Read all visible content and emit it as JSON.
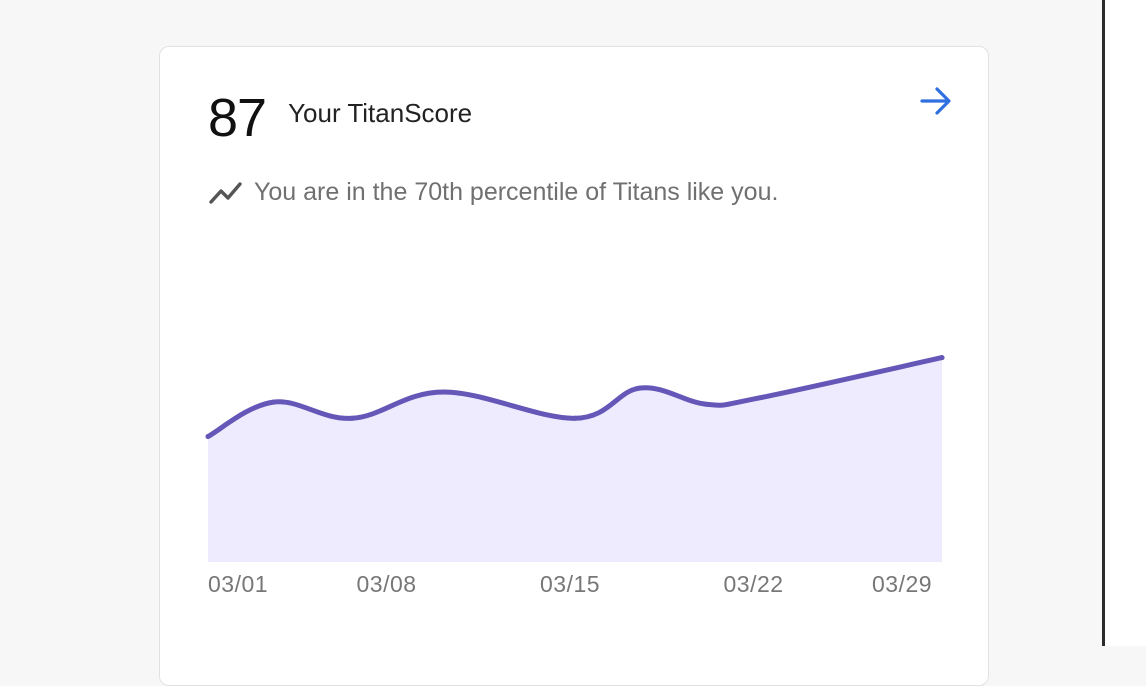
{
  "score": {
    "value": "87",
    "label": "Your TitanScore"
  },
  "percentile": {
    "icon": "trending-up-icon",
    "text": "You are in the 70th percentile of Titans like you."
  },
  "navigation": {
    "arrow_icon": "arrow-right-icon"
  },
  "colors": {
    "line": "#6557b8",
    "area": "#efebfe",
    "arrow": "#2f6fe0",
    "trend_icon": "#555555"
  },
  "chart_data": {
    "type": "area",
    "title": "",
    "xlabel": "",
    "ylabel": "",
    "tick_labels": [
      "03/01",
      "03/08",
      "03/15",
      "03/22",
      "03/29"
    ],
    "x": [
      1,
      3.5,
      6.5,
      10,
      15,
      17.5,
      20,
      22,
      29
    ],
    "y": [
      62,
      79,
      71,
      84,
      71,
      86,
      78,
      81,
      101
    ],
    "xlim": [
      1,
      29
    ],
    "ylim": [
      0,
      127
    ],
    "grid": false,
    "legend": "none"
  }
}
